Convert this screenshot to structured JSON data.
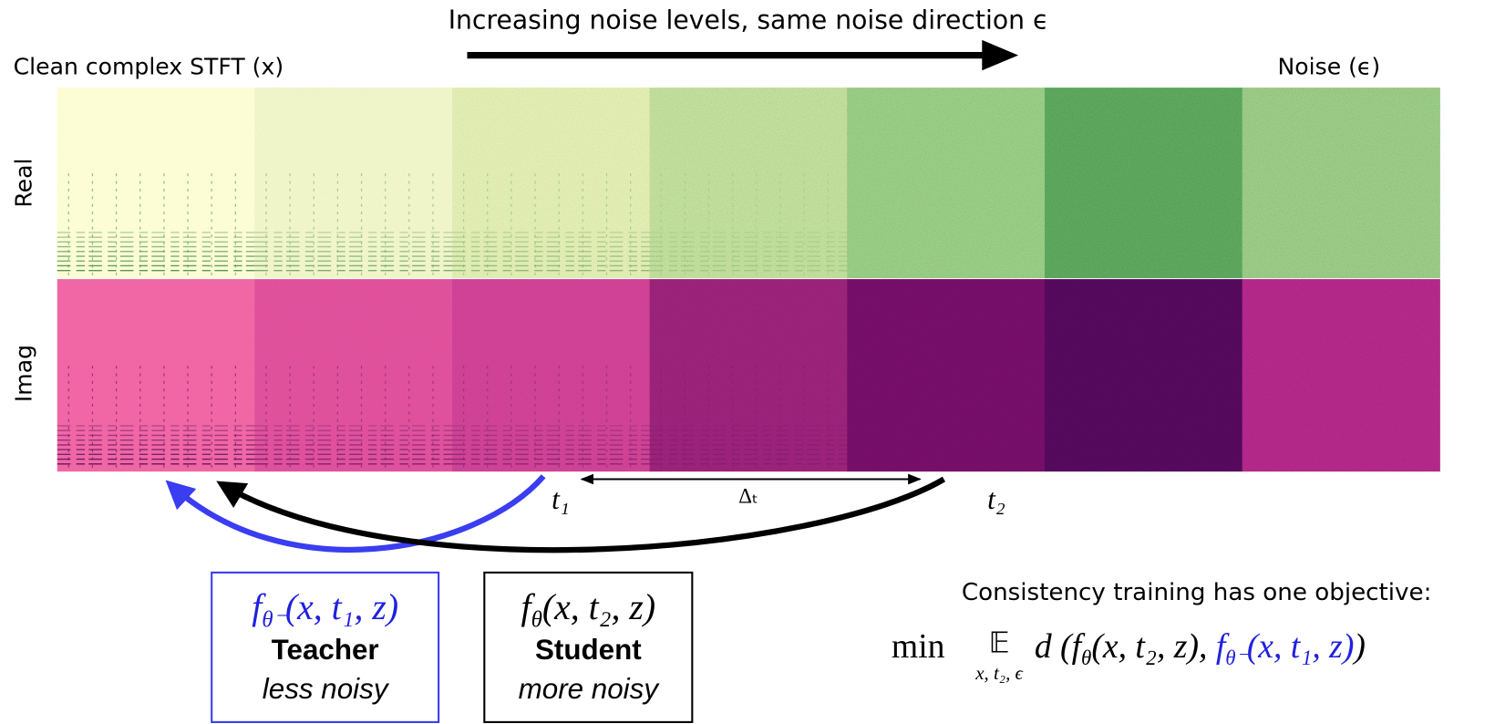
{
  "header": {
    "title": "Increasing noise levels, same noise direction ϵ",
    "left_label": "Clean complex STFT (x)",
    "right_label": "Noise (ϵ)"
  },
  "rows": [
    "Real",
    "Imag"
  ],
  "timesteps": {
    "t1": "t₁",
    "delta": "Δₜ",
    "t2": "t₂"
  },
  "teacher": {
    "f": "f",
    "sub": "θ⁻",
    "args": "(x, t₁, z)",
    "name": "Teacher",
    "note": "less noisy"
  },
  "student": {
    "f": "f",
    "sub": "θ",
    "args": "(x, t₂, z)",
    "name": "Student",
    "note": "more noisy"
  },
  "objective": {
    "caption": "Consistency training has one objective:",
    "min": "min",
    "expect": "𝔼",
    "under": "x, t₂, ϵ",
    "d": "d (",
    "student_f": "f",
    "student_sub": "θ",
    "student_args": "(x, t₂, z), ",
    "teacher_f": "f",
    "teacher_sub": "θ⁻",
    "teacher_args": "(x, t₁, z)",
    "close": ")"
  }
}
